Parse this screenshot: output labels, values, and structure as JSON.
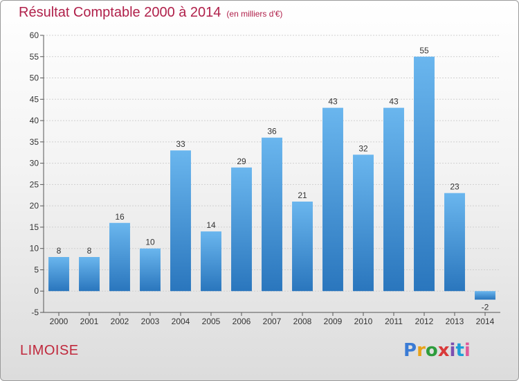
{
  "header": {
    "title": "Résultat Comptable 2000 à 2014",
    "subtitle": "(en milliers d'€)"
  },
  "footer": {
    "commune": "LIMOISE",
    "logo": {
      "text": "Proxiti",
      "colors": [
        "#3a7bd5",
        "#e8a21a",
        "#2d9c3c",
        "#d93a3a",
        "#7b4fb0",
        "#1e9fd8",
        "#e05a9b"
      ]
    }
  },
  "colors": {
    "bar_top": "#6ab6ee",
    "bar_bottom": "#2a76bd",
    "grid": "#cfcfcf",
    "title": "#b0204a"
  },
  "chart_data": {
    "type": "bar",
    "title": "Résultat Comptable 2000 à 2014",
    "subtitle": "(en milliers d'€)",
    "categories": [
      "2000",
      "2001",
      "2002",
      "2003",
      "2004",
      "2005",
      "2006",
      "2007",
      "2008",
      "2009",
      "2010",
      "2011",
      "2012",
      "2013",
      "2014"
    ],
    "values": [
      8,
      8,
      16,
      10,
      33,
      14,
      29,
      36,
      21,
      43,
      32,
      43,
      55,
      23,
      -2
    ],
    "value_labels": [
      "8",
      "8",
      "16",
      "10",
      "33",
      "14",
      "29",
      "36",
      "21",
      "43",
      "32",
      "43",
      "55",
      "23",
      "-2"
    ],
    "ylim": [
      -5,
      60
    ],
    "yticks": [
      -5,
      0,
      5,
      10,
      15,
      20,
      25,
      30,
      35,
      40,
      45,
      50,
      55,
      60
    ],
    "ytick_labels": [
      "-5",
      "0",
      "5",
      "10",
      "15",
      "20",
      "25",
      "30",
      "35",
      "40",
      "45",
      "50",
      "55",
      "60"
    ],
    "grid": true
  }
}
